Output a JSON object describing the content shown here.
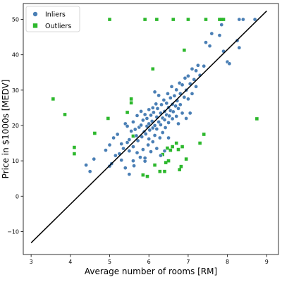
{
  "chart_data": {
    "type": "scatter",
    "xlabel": "Average number of rooms [RM]",
    "ylabel": "Price in $1000s [MEDV]",
    "xlim": [
      2.8,
      9.3
    ],
    "ylim": [
      -16.5,
      54.5
    ],
    "xticks": [
      3,
      4,
      5,
      6,
      7,
      8,
      9
    ],
    "yticks": [
      -10,
      0,
      10,
      20,
      30,
      40,
      50
    ],
    "grid": false,
    "legend_position": "top-left",
    "series": [
      {
        "name": "Inliers",
        "color": "#4a7fb5",
        "marker": "circle",
        "points": [
          [
            4.5,
            7.0
          ],
          [
            4.6,
            10.5
          ],
          [
            4.4,
            8.8
          ],
          [
            4.9,
            13.0
          ],
          [
            5.0,
            14.5
          ],
          [
            5.0,
            8.5
          ],
          [
            5.05,
            9.2
          ],
          [
            5.1,
            16.5
          ],
          [
            5.15,
            11.5
          ],
          [
            5.2,
            17.5
          ],
          [
            5.25,
            12.0
          ],
          [
            5.3,
            14.8
          ],
          [
            5.3,
            10.2
          ],
          [
            5.35,
            13.5
          ],
          [
            5.4,
            20.5
          ],
          [
            5.4,
            8.0
          ],
          [
            5.45,
            15.2
          ],
          [
            5.45,
            19.8
          ],
          [
            5.5,
            12.8
          ],
          [
            5.5,
            6.2
          ],
          [
            5.5,
            16.0
          ],
          [
            5.55,
            18.4
          ],
          [
            5.6,
            21.0
          ],
          [
            5.6,
            14.0
          ],
          [
            5.6,
            10.0
          ],
          [
            5.62,
            8.6
          ],
          [
            5.65,
            18.9
          ],
          [
            5.68,
            17.1
          ],
          [
            5.7,
            22.8
          ],
          [
            5.7,
            12.3
          ],
          [
            5.72,
            15.7
          ],
          [
            5.75,
            19.5
          ],
          [
            5.78,
            11.0
          ],
          [
            5.8,
            20.1
          ],
          [
            5.8,
            24.0
          ],
          [
            5.82,
            16.8
          ],
          [
            5.85,
            13.2
          ],
          [
            5.85,
            21.5
          ],
          [
            5.88,
            18.2
          ],
          [
            5.9,
            23.1
          ],
          [
            5.9,
            9.9
          ],
          [
            5.92,
            17.6
          ],
          [
            5.95,
            19.8
          ],
          [
            5.95,
            22.0
          ],
          [
            5.98,
            14.5
          ],
          [
            6.0,
            24.5
          ],
          [
            6.0,
            20.5
          ],
          [
            6.0,
            16.2
          ],
          [
            6.02,
            18.7
          ],
          [
            6.05,
            22.9
          ],
          [
            6.05,
            12.6
          ],
          [
            6.08,
            21.2
          ],
          [
            6.1,
            25.0
          ],
          [
            6.1,
            19.3
          ],
          [
            6.1,
            15.4
          ],
          [
            6.12,
            23.7
          ],
          [
            6.15,
            20.0
          ],
          [
            6.15,
            17.2
          ],
          [
            6.18,
            26.1
          ],
          [
            6.2,
            22.4
          ],
          [
            6.2,
            19.0
          ],
          [
            6.22,
            24.8
          ],
          [
            6.25,
            21.0
          ],
          [
            6.25,
            28.5
          ],
          [
            6.28,
            16.5
          ],
          [
            6.3,
            23.5
          ],
          [
            6.3,
            20.2
          ],
          [
            6.32,
            25.9
          ],
          [
            6.35,
            22.1
          ],
          [
            6.35,
            18.0
          ],
          [
            6.38,
            27.2
          ],
          [
            6.4,
            24.0
          ],
          [
            6.4,
            21.6
          ],
          [
            6.42,
            19.4
          ],
          [
            6.45,
            26.3
          ],
          [
            6.45,
            23.0
          ],
          [
            6.48,
            29.0
          ],
          [
            6.5,
            25.1
          ],
          [
            6.5,
            20.8
          ],
          [
            6.52,
            22.7
          ],
          [
            6.55,
            27.8
          ],
          [
            6.55,
            24.2
          ],
          [
            6.58,
            31.0
          ],
          [
            6.6,
            26.0
          ],
          [
            6.6,
            21.9
          ],
          [
            6.62,
            23.9
          ],
          [
            6.65,
            28.4
          ],
          [
            6.68,
            25.5
          ],
          [
            6.7,
            30.1
          ],
          [
            6.7,
            22.6
          ],
          [
            6.72,
            27.0
          ],
          [
            6.75,
            24.8
          ],
          [
            6.78,
            32.0
          ],
          [
            6.8,
            29.0
          ],
          [
            6.8,
            25.9
          ],
          [
            6.85,
            31.5
          ],
          [
            6.85,
            23.5
          ],
          [
            6.9,
            28.0
          ],
          [
            6.92,
            33.4
          ],
          [
            6.95,
            30.0
          ],
          [
            7.0,
            27.5
          ],
          [
            7.0,
            34.0
          ],
          [
            7.05,
            31.8
          ],
          [
            7.1,
            36.0
          ],
          [
            7.1,
            29.0
          ],
          [
            7.15,
            33.0
          ],
          [
            7.2,
            35.5
          ],
          [
            7.2,
            31.0
          ],
          [
            7.25,
            37.0
          ],
          [
            7.3,
            34.2
          ],
          [
            7.4,
            36.8
          ],
          [
            7.45,
            43.5
          ],
          [
            7.55,
            42.5
          ],
          [
            7.6,
            46.0
          ],
          [
            7.8,
            45.5
          ],
          [
            7.85,
            48.5
          ],
          [
            7.9,
            41.0
          ],
          [
            8.0,
            38.0
          ],
          [
            8.05,
            37.5
          ],
          [
            8.25,
            44.0
          ],
          [
            8.3,
            42.0
          ],
          [
            8.3,
            50.0
          ],
          [
            8.4,
            50.0
          ],
          [
            8.7,
            50.0
          ],
          [
            6.15,
            29.5
          ],
          [
            6.3,
            11.5
          ],
          [
            6.2,
            13.5
          ],
          [
            5.9,
            10.8
          ],
          [
            6.5,
            16.5
          ],
          [
            6.95,
            22.0
          ],
          [
            6.4,
            12.8
          ],
          [
            6.75,
            20.5
          ],
          [
            7.05,
            23.5
          ]
        ]
      },
      {
        "name": "Outliers",
        "color": "#2db82d",
        "marker": "square",
        "points": [
          [
            3.56,
            27.5
          ],
          [
            3.86,
            23.1
          ],
          [
            4.1,
            13.8
          ],
          [
            4.1,
            12.0
          ],
          [
            4.62,
            17.8
          ],
          [
            4.96,
            22.0
          ],
          [
            5.0,
            50.0
          ],
          [
            5.45,
            23.7
          ],
          [
            5.55,
            27.5
          ],
          [
            5.55,
            26.4
          ],
          [
            5.6,
            17.0
          ],
          [
            5.85,
            6.0
          ],
          [
            5.9,
            50.0
          ],
          [
            5.96,
            5.6
          ],
          [
            6.1,
            36.0
          ],
          [
            6.15,
            8.8
          ],
          [
            6.2,
            50.0
          ],
          [
            6.28,
            7.0
          ],
          [
            6.35,
            11.8
          ],
          [
            6.4,
            7.0
          ],
          [
            6.43,
            9.5
          ],
          [
            6.47,
            13.6
          ],
          [
            6.5,
            10.0
          ],
          [
            6.55,
            13.0
          ],
          [
            6.6,
            14.0
          ],
          [
            6.62,
            50.0
          ],
          [
            6.7,
            15.0
          ],
          [
            6.75,
            13.2
          ],
          [
            6.78,
            7.5
          ],
          [
            6.82,
            8.4
          ],
          [
            6.85,
            14.0
          ],
          [
            6.9,
            41.3
          ],
          [
            6.95,
            10.5
          ],
          [
            7.0,
            50.0
          ],
          [
            7.3,
            15.0
          ],
          [
            7.4,
            17.5
          ],
          [
            7.45,
            50.0
          ],
          [
            7.8,
            50.0
          ],
          [
            7.85,
            50.0
          ],
          [
            7.9,
            50.0
          ],
          [
            8.75,
            21.9
          ]
        ]
      }
    ],
    "regression_line": {
      "x": [
        3.0,
        9.0
      ],
      "y": [
        -13.2,
        52.4
      ],
      "color": "#000000"
    }
  }
}
